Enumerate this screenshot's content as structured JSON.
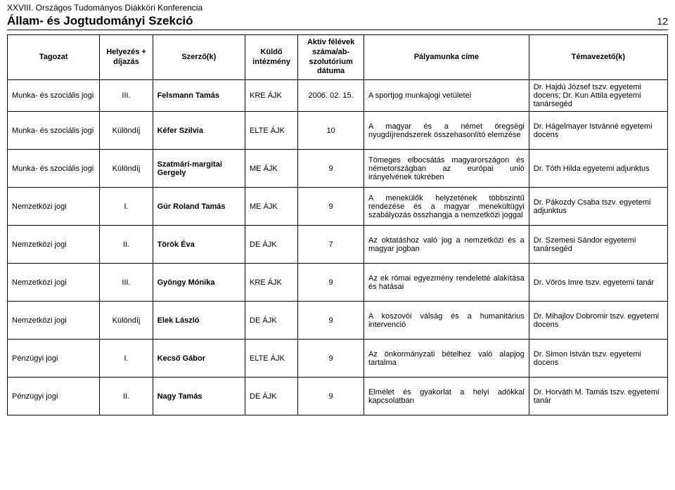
{
  "header": {
    "conference": "XXVIII. Országos Tudományos Diákköri Konferencia",
    "section": "Állam- és Jogtudományi Szekció",
    "page": "12"
  },
  "table": {
    "columns": [
      "Tagozat",
      "Helyezés\n+\ndíjazás",
      "Szerző(k)",
      "Küldő\nintézmény",
      "Aktív félévek\nszáma/ab-\nszolutórium\ndátuma",
      "Pályamunka címe",
      "Témavezető(k)"
    ],
    "rows": [
      {
        "tagozat": "Munka- és szociális jogi",
        "dij": "III.",
        "szerzo": "Felsmann Tamás",
        "int": "KRE ÁJK",
        "felev": "2006. 02. 15.",
        "cim": "A sportjog munkajogi vetületei",
        "tema": "Dr. Hajdú József tszv. egyetemi docens; Dr. Kun Attila egyetemi tanársegéd"
      },
      {
        "tagozat": "Munka- és szociális jogi",
        "dij": "Különdíj",
        "szerzo": "Kéfer Szilvia",
        "int": "ELTE ÁJK",
        "felev": "10",
        "cim": "A magyar és a német öregségi nyugdíjrendszerek összehasonlító elemzése",
        "tema": "Dr. Hágelmayer Istvánné egyetemi docens"
      },
      {
        "tagozat": "Munka- és szociális jogi",
        "dij": "Különdíj",
        "szerzo": "Szatmári-margitai Gergely",
        "int": "ME ÁJK",
        "felev": "9",
        "cim": "Tömeges elbocsátás magyarországon és németországban az európai unió irányelvének tükrében",
        "tema": "Dr. Tóth Hilda egyetemi adjunktus"
      },
      {
        "tagozat": "Nemzetközi jogi",
        "dij": "I.",
        "szerzo": "Gúr Roland Tamás",
        "int": "ME ÁJK",
        "felev": "9",
        "cim": "A menekülők helyzetének többszintű rendezése és a magyar menekültügyi szabályozás összhangja a nemzetközi joggal",
        "tema": "Dr. Pákozdy Csaba tszv. egyetemi adjunktus"
      },
      {
        "tagozat": "Nemzetközi jogi",
        "dij": "II.",
        "szerzo": "Török Éva",
        "int": "DE ÁJK",
        "felev": "7",
        "cim": "Az oktatáshoz való jog a nemzetközi és a magyar jogban",
        "tema": "Dr. Szemesi Sándor egyetemi tanársegéd"
      },
      {
        "tagozat": "Nemzetközi jogi",
        "dij": "III.",
        "szerzo": "Gyöngy Mónika",
        "int": "KRE ÁJK",
        "felev": "9",
        "cim": "Az ek római egyezmény rendeletté alakítása és hatásai",
        "tema": "Dr. Vörös Imre tszv. egyetemi tanár"
      },
      {
        "tagozat": "Nemzetközi jogi",
        "dij": "Különdíj",
        "szerzo": "Elek László",
        "int": "DE ÁJK",
        "felev": "9",
        "cim": "A koszovói válság és a humanitárius intervenció",
        "tema": "Dr. Mihajlov Dobromir tszv. egyetemi docens"
      },
      {
        "tagozat": "Pénzügyi jogi",
        "dij": "I.",
        "szerzo": "Kecső Gábor",
        "int": "ELTE ÁJK",
        "felev": "9",
        "cim": "Az önkormányzati bételhez való alapjog tartalma",
        "tema": "Dr. Simon István tszv. egyetemi docens"
      },
      {
        "tagozat": "Pénzügyi jogi",
        "dij": "II.",
        "szerzo": "Nagy Tamás",
        "int": "DE ÁJK",
        "felev": "9",
        "cim": "Elmélet és gyakorlat a helyi adókkal kapcsolatban",
        "tema": "Dr. Horváth M. Tamás tszv. egyetemi tanár"
      }
    ]
  }
}
